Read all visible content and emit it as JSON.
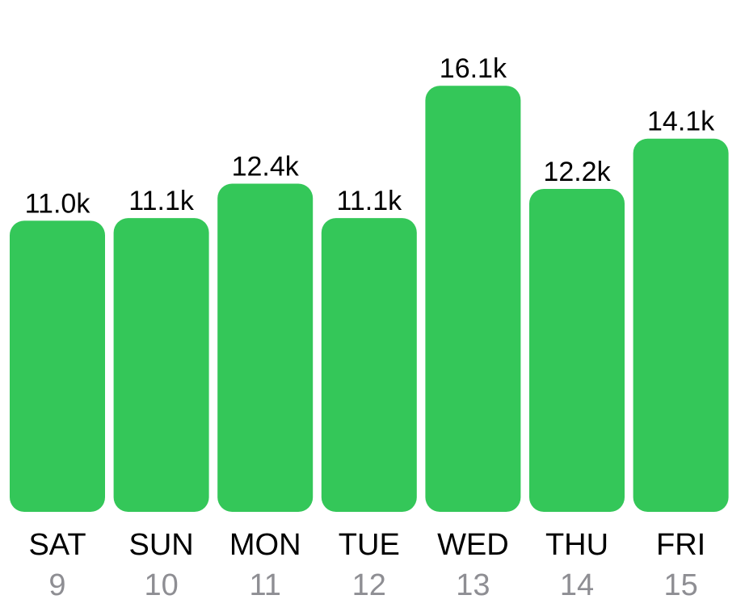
{
  "chart_data": {
    "type": "bar",
    "categories": [
      "SAT",
      "SUN",
      "MON",
      "TUE",
      "WED",
      "THU",
      "FRI"
    ],
    "dates": [
      "9",
      "10",
      "11",
      "12",
      "13",
      "14",
      "15"
    ],
    "values": [
      11.0,
      11.1,
      12.4,
      11.1,
      16.1,
      12.2,
      14.1
    ],
    "value_labels": [
      "11.0k",
      "11.1k",
      "12.4k",
      "11.1k",
      "16.1k",
      "12.2k",
      "14.1k"
    ],
    "ylim": [
      0,
      17.6
    ],
    "grid": false,
    "legend": "none"
  },
  "colors": {
    "bar": "#34c759",
    "value_text": "#000000",
    "day_text": "#000000",
    "date_text": "#8e8e93"
  }
}
